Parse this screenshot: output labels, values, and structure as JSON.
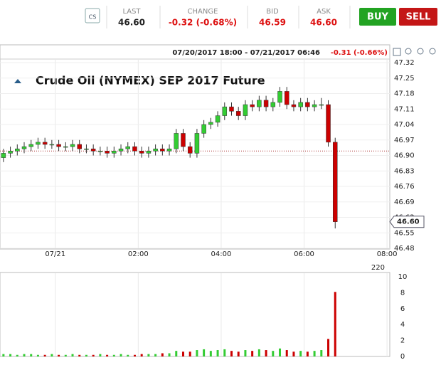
{
  "header": {
    "last": {
      "label": "LAST",
      "value": "46.60"
    },
    "change": {
      "label": "CHANGE",
      "value": "-0.32 (-0.68%)"
    },
    "bid": {
      "label": "BID",
      "value": "46.59"
    },
    "ask": {
      "label": "ASK",
      "value": "46.60"
    },
    "buy": "BUY",
    "sell": "SELL",
    "icon": "CS"
  },
  "chart_data": {
    "type": "candlestick",
    "title": "Crude Oil (NYMEX) SEP 2017 Future",
    "range_text": "07/20/2017 18:00 - 07/21/2017 06:46",
    "range_change": "-0.31 (-0.66%)",
    "x": [
      "2017-07-20T22:40",
      "2017-07-20T22:50",
      "2017-07-20T23:00",
      "2017-07-20T23:10",
      "2017-07-20T23:20",
      "2017-07-20T23:30",
      "2017-07-20T23:40",
      "2017-07-20T23:50",
      "2017-07-21T00:00",
      "2017-07-21T00:10",
      "2017-07-21T00:20",
      "2017-07-21T00:30",
      "2017-07-21T00:40",
      "2017-07-21T00:50",
      "2017-07-21T01:00",
      "2017-07-21T01:10",
      "2017-07-21T01:20",
      "2017-07-21T01:30",
      "2017-07-21T01:40",
      "2017-07-21T01:50",
      "2017-07-21T02:00",
      "2017-07-21T02:10",
      "2017-07-21T02:20",
      "2017-07-21T02:30",
      "2017-07-21T02:40",
      "2017-07-21T02:50",
      "2017-07-21T03:00",
      "2017-07-21T03:10",
      "2017-07-21T03:20",
      "2017-07-21T03:30",
      "2017-07-21T03:40",
      "2017-07-21T03:50",
      "2017-07-21T04:00",
      "2017-07-21T04:10",
      "2017-07-21T04:20",
      "2017-07-21T04:30",
      "2017-07-21T04:40",
      "2017-07-21T04:50",
      "2017-07-21T05:00",
      "2017-07-21T05:10",
      "2017-07-21T05:20",
      "2017-07-21T05:30",
      "2017-07-21T05:40",
      "2017-07-21T05:50",
      "2017-07-21T06:00",
      "2017-07-21T06:10",
      "2017-07-21T06:20",
      "2017-07-21T06:30",
      "2017-07-21T06:40"
    ],
    "open": [
      46.89,
      46.91,
      46.92,
      46.93,
      46.94,
      46.95,
      46.96,
      46.95,
      46.95,
      46.94,
      46.94,
      46.95,
      46.93,
      46.93,
      46.92,
      46.92,
      46.91,
      46.92,
      46.93,
      46.94,
      46.92,
      46.91,
      46.92,
      46.93,
      46.92,
      46.93,
      47.0,
      46.94,
      46.91,
      47.0,
      47.04,
      47.05,
      47.08,
      47.12,
      47.1,
      47.08,
      47.13,
      47.12,
      47.15,
      47.12,
      47.14,
      47.19,
      47.13,
      47.12,
      47.14,
      47.12,
      47.13,
      47.13,
      46.96
    ],
    "high": [
      46.93,
      46.94,
      46.95,
      46.96,
      46.97,
      46.98,
      46.98,
      46.97,
      46.97,
      46.96,
      46.97,
      46.97,
      46.95,
      46.95,
      46.94,
      46.94,
      46.94,
      46.95,
      46.96,
      46.96,
      46.94,
      46.94,
      46.95,
      46.95,
      46.95,
      47.02,
      47.02,
      46.96,
      47.02,
      47.06,
      47.07,
      47.1,
      47.14,
      47.14,
      47.12,
      47.15,
      47.15,
      47.17,
      47.17,
      47.16,
      47.21,
      47.21,
      47.15,
      47.16,
      47.16,
      47.15,
      47.16,
      47.15,
      46.98
    ],
    "low": [
      46.87,
      46.89,
      46.9,
      46.91,
      46.92,
      46.93,
      46.93,
      46.93,
      46.92,
      46.92,
      46.92,
      46.91,
      46.91,
      46.9,
      46.9,
      46.89,
      46.89,
      46.9,
      46.91,
      46.9,
      46.89,
      46.89,
      46.9,
      46.9,
      46.9,
      46.91,
      46.92,
      46.89,
      46.89,
      46.98,
      47.02,
      47.03,
      47.06,
      47.08,
      47.06,
      47.06,
      47.1,
      47.1,
      47.1,
      47.1,
      47.12,
      47.11,
      47.1,
      47.1,
      47.1,
      47.1,
      47.11,
      46.94,
      46.57
    ],
    "close": [
      46.91,
      46.92,
      46.93,
      46.94,
      46.95,
      46.96,
      46.95,
      46.95,
      46.94,
      46.94,
      46.95,
      46.93,
      46.93,
      46.92,
      46.92,
      46.91,
      46.92,
      46.93,
      46.94,
      46.92,
      46.91,
      46.92,
      46.93,
      46.92,
      46.93,
      47.0,
      46.94,
      46.91,
      47.0,
      47.04,
      47.05,
      47.08,
      47.12,
      47.1,
      47.08,
      47.13,
      47.12,
      47.15,
      47.12,
      47.14,
      47.19,
      47.13,
      47.12,
      47.14,
      47.12,
      47.13,
      47.13,
      46.96,
      46.6
    ],
    "volume": [
      0.3,
      0.3,
      0.2,
      0.3,
      0.3,
      0.2,
      0.2,
      0.3,
      0.2,
      0.2,
      0.3,
      0.2,
      0.2,
      0.2,
      0.3,
      0.2,
      0.2,
      0.3,
      0.2,
      0.2,
      0.3,
      0.3,
      0.3,
      0.4,
      0.4,
      0.7,
      0.6,
      0.6,
      0.8,
      0.9,
      0.7,
      0.8,
      0.9,
      0.7,
      0.6,
      0.8,
      0.7,
      0.9,
      0.8,
      0.7,
      1.0,
      0.8,
      0.6,
      0.7,
      0.6,
      0.7,
      0.8,
      2.2,
      8.1
    ],
    "up_color": "#33cc33",
    "down_color": "#cc0000",
    "xlim": [
      "2017-07-20T22:40",
      "2017-07-21T08:04"
    ],
    "xticks": [
      {
        "value": "2017-07-21T00:00",
        "label": "07/21"
      },
      {
        "value": "2017-07-21T02:00",
        "label": "02:00"
      },
      {
        "value": "2017-07-21T04:00",
        "label": "04:00"
      },
      {
        "value": "2017-07-21T06:00",
        "label": "06:00"
      },
      {
        "value": "2017-07-21T08:00",
        "label": "08:00"
      }
    ],
    "ylim": [
      46.48,
      47.32
    ],
    "yticks": [
      47.32,
      47.25,
      47.18,
      47.11,
      47.04,
      46.97,
      {
        "value": 46.9,
        "label": "46.90"
      },
      46.83,
      46.76,
      46.69,
      46.62,
      46.55,
      46.48
    ],
    "ref_line": 46.92,
    "price_tag": {
      "value": 46.6,
      "label": "46.60"
    },
    "volume_ylim": [
      0,
      10
    ],
    "volume_yticks": [
      0,
      2,
      4,
      6,
      8,
      10
    ],
    "volume_top_label": "220",
    "grid": true
  }
}
